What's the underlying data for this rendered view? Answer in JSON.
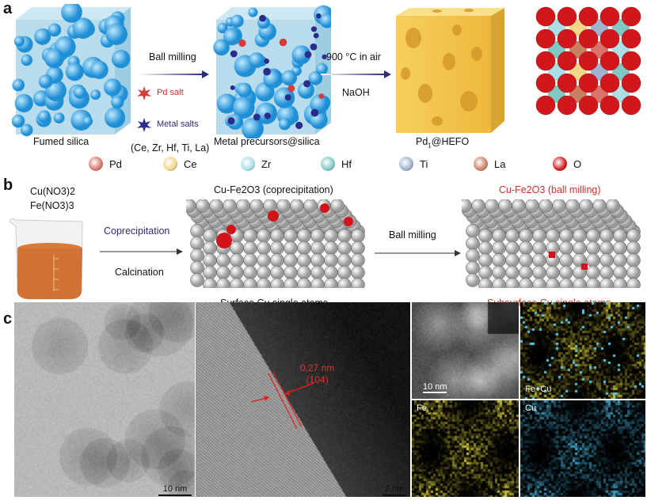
{
  "panel_a": {
    "label": "a",
    "step1_caption": "Fumed silica",
    "arrow1_label": "Ball milling",
    "pd_salt": "Pd salt",
    "metal_salts": "Metal salts",
    "metals_list": "(Ce, Zr, Hf, Ti, La)",
    "step2_caption": "Metal precursors@silica",
    "arrow2_top": "900 °C in air",
    "arrow2_bottom": "NaOH",
    "step3_caption_main": "Pd",
    "step3_caption_sub": "1",
    "step3_caption_rest": "@HEFO",
    "legend": [
      {
        "label": "Pd",
        "color": "#d9736b"
      },
      {
        "label": "Ce",
        "color": "#f1d78a"
      },
      {
        "label": "Zr",
        "color": "#a9dfe6"
      },
      {
        "label": "Hf",
        "color": "#7fc9c4"
      },
      {
        "label": "Ti",
        "color": "#9fb3cf"
      },
      {
        "label": "La",
        "color": "#c98060"
      },
      {
        "label": "O",
        "color": "#d0181c"
      }
    ]
  },
  "panel_b": {
    "label": "b",
    "precursor1": "Cu(NO3)2",
    "precursor2": "Fe(NO3)3",
    "arrow1_top": "Coprecipitation",
    "arrow1_bottom": "Calcination",
    "slab1_title": "Cu-Fe2O3 (coprecipitation)",
    "slab1_caption": "Surface Cu single atoms",
    "arrow2_label": "Ball milling",
    "slab2_title": "Cu-Fe2O3 (ball milling)",
    "slab2_caption": "Subsurface Cu single atoms"
  },
  "panel_c": {
    "label": "c",
    "tem_scale": "10 nm",
    "hrtem_scale": "2 nm",
    "lattice_spacing": "0.27 nm",
    "lattice_plane": "(104)",
    "haadf_scale": "10 nm",
    "map_fecu": "Fe+Cu",
    "map_fe": "Fe",
    "map_cu": "Cu"
  }
}
